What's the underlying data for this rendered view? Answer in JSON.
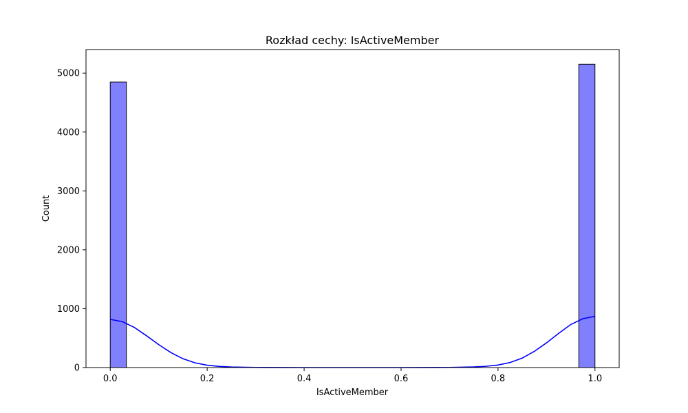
{
  "chart_data": {
    "type": "bar",
    "title": "Rozkład cechy: IsActiveMember",
    "xlabel": "IsActiveMember",
    "ylabel": "Count",
    "xlim": [
      -0.05,
      1.05
    ],
    "ylim": [
      0,
      5400
    ],
    "xticks": [
      0.0,
      0.2,
      0.4,
      0.6,
      0.8,
      1.0
    ],
    "xtick_labels": [
      "0.0",
      "0.2",
      "0.4",
      "0.6",
      "0.8",
      "1.0"
    ],
    "yticks": [
      0,
      1000,
      2000,
      3000,
      4000,
      5000
    ],
    "ytick_labels": [
      "0",
      "1000",
      "2000",
      "3000",
      "4000",
      "5000"
    ],
    "grid": false,
    "bins": [
      {
        "x0": 0.0,
        "x1": 0.0333,
        "count": 4849
      },
      {
        "x0": 0.9667,
        "x1": 1.0,
        "count": 5151
      }
    ],
    "kde": {
      "x": [
        0.0,
        0.025,
        0.05,
        0.075,
        0.1,
        0.125,
        0.15,
        0.175,
        0.2,
        0.225,
        0.25,
        0.3,
        0.35,
        0.4,
        0.45,
        0.5,
        0.55,
        0.6,
        0.65,
        0.7,
        0.75,
        0.775,
        0.8,
        0.825,
        0.85,
        0.875,
        0.9,
        0.925,
        0.95,
        0.975,
        1.0
      ],
      "y": [
        818,
        780,
        680,
        540,
        390,
        255,
        150,
        80,
        40,
        20,
        10,
        3,
        1,
        0,
        0,
        0,
        0,
        0,
        1,
        3,
        11,
        22,
        43,
        86,
        161,
        275,
        420,
        580,
        730,
        830,
        870
      ]
    },
    "colors": {
      "bar_fill": "#8080ff",
      "bar_edge": "#000000",
      "kde_line": "#0000ff"
    }
  }
}
